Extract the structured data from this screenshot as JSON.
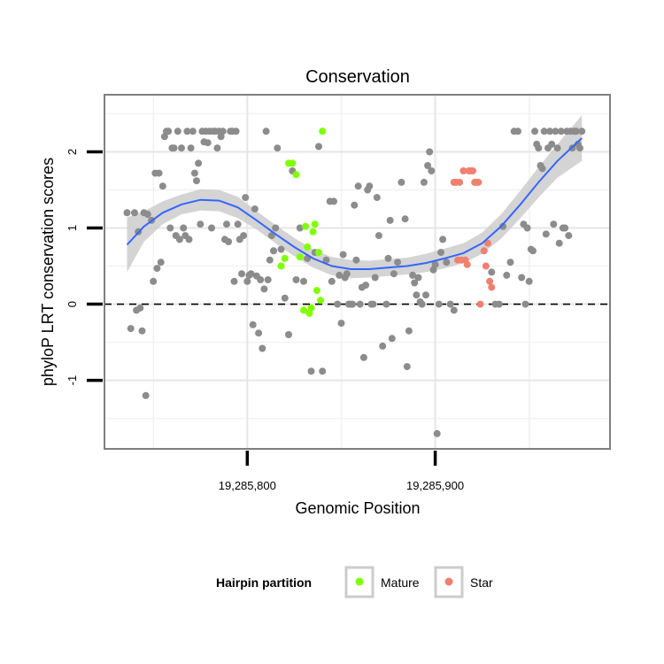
{
  "chart_data": {
    "type": "scatter",
    "title": "Conservation",
    "xlabel": "Genomic Position",
    "ylabel": "phyloP LRT conservation scores",
    "xlim": [
      19285724,
      19285993
    ],
    "ylim": [
      -1.9,
      2.75
    ],
    "x_ticks": [
      {
        "value": 19285800,
        "label": "19,285,800"
      },
      {
        "value": 19285900,
        "label": "19,285,900"
      }
    ],
    "y_ticks": [
      {
        "value": -1,
        "label": "-1"
      },
      {
        "value": 0,
        "label": "0"
      },
      {
        "value": 1,
        "label": "1"
      },
      {
        "value": 2,
        "label": "2"
      }
    ],
    "reference_line": {
      "y": 0,
      "style": "dashed"
    },
    "grid": true,
    "legend": {
      "title": "Hairpin partition",
      "placement": "bottom",
      "entries": [
        {
          "label": "Mature",
          "color": "#7FFF00"
        },
        {
          "label": "Star",
          "color": "#F08070"
        }
      ]
    },
    "colors": {
      "other": "#8c8c8c",
      "mature": "#7FFF00",
      "star": "#F08070",
      "smooth": "#3366FF",
      "band": "#cccccc"
    },
    "series": [
      {
        "group": "other",
        "x": [
          19285736,
          19285738,
          19285740,
          19285741,
          19285742,
          19285743,
          19285744,
          19285745,
          19285746,
          19285747,
          19285749,
          19285750,
          19285751,
          19285752,
          19285753,
          19285754,
          19285755,
          19285756,
          19285757,
          19285758,
          19285759,
          19285760,
          19285761,
          19285762,
          19285763,
          19285764,
          19285765,
          19285766,
          19285767,
          19285768,
          19285769,
          19285770,
          19285771,
          19285772,
          19285773,
          19285774,
          19285775,
          19285776,
          19285777,
          19285778,
          19285779,
          19285780,
          19285781,
          19285782,
          19285783,
          19285784,
          19285785,
          19285786,
          19285787,
          19285788,
          19285789,
          19285790,
          19285791,
          19285792,
          19285793,
          19285794,
          19285795,
          19285796,
          19285797,
          19285798,
          19285799,
          19285800,
          19285801,
          19285802,
          19285803,
          19285804,
          19285805,
          19285806,
          19285807,
          19285808,
          19285809,
          19285810,
          19285811,
          19285812,
          19285813,
          19285814,
          19285815,
          19285816,
          19285818,
          19285820,
          19285822,
          19285824,
          19285826,
          19285828,
          19285830,
          19285832,
          19285834,
          19285836,
          19285838,
          19285840,
          19285842,
          19285844,
          19285845,
          19285846,
          19285848,
          19285849,
          19285850,
          19285851,
          19285852,
          19285853,
          19285854,
          19285855,
          19285856,
          19285857,
          19285858,
          19285859,
          19285860,
          19285861,
          19285862,
          19285863,
          19285864,
          19285865,
          19285866,
          19285867,
          19285868,
          19285869,
          19285870,
          19285872,
          19285874,
          19285875,
          19285876,
          19285877,
          19285878,
          19285880,
          19285882,
          19285884,
          19285885,
          19285886,
          19285888,
          19285889,
          19285890,
          19285891,
          19285892,
          19285893,
          19285894,
          19285895,
          19285896,
          19285897,
          19285898,
          19285899,
          19285900,
          19285901,
          19285902,
          19285903,
          19285904,
          19285906,
          19285908,
          19285910,
          19285930,
          19285932,
          19285934,
          19285936,
          19285938,
          19285940,
          19285942,
          19285944,
          19285946,
          19285947,
          19285948,
          19285949,
          19285950,
          19285951,
          19285952,
          19285953,
          19285954,
          19285955,
          19285956,
          19285957,
          19285958,
          19285959,
          19285960,
          19285961,
          19285962,
          19285963,
          19285964,
          19285965,
          19285966,
          19285967,
          19285968,
          19285969,
          19285970,
          19285971,
          19285972,
          19285973,
          19285974,
          19285975,
          19285976,
          19285977,
          19285978
        ],
        "y": [
          1.2,
          -0.32,
          1.2,
          -0.08,
          0.95,
          -0.05,
          -0.35,
          1.2,
          -1.2,
          1.18,
          1.1,
          0.3,
          1.72,
          0.47,
          1.72,
          0.55,
          1.55,
          2.2,
          2.27,
          2.27,
          1.0,
          2.05,
          2.05,
          0.9,
          2.27,
          0.85,
          2.05,
          1.0,
          0.9,
          2.27,
          0.85,
          2.05,
          2.27,
          1.72,
          1.62,
          1.85,
          1.05,
          2.27,
          2.13,
          2.27,
          2.12,
          2.27,
          1.0,
          2.27,
          2.27,
          2.05,
          2.27,
          2.2,
          2.27,
          0.85,
          1.05,
          0.82,
          2.27,
          2.27,
          0.3,
          2.27,
          1.05,
          0.85,
          0.4,
          0.9,
          1.4,
          0.3,
          0.38,
          0.4,
          -0.27,
          1.25,
          0.37,
          -0.38,
          0.32,
          -0.58,
          0.2,
          2.27,
          0.32,
          0.58,
          0.9,
          0.7,
          1.0,
          2.05,
          0.72,
          0.08,
          -0.4,
          1.75,
          0.32,
          1.0,
          0.3,
          0.6,
          -0.88,
          0.68,
          2.07,
          -0.88,
          0.58,
          1.35,
          0.3,
          1.35,
          0.0,
          0.38,
          -0.25,
          0.65,
          0.35,
          0.4,
          0.0,
          0.0,
          0.0,
          1.3,
          0.58,
          1.55,
          0.0,
          0.22,
          -0.7,
          0.25,
          1.5,
          1.55,
          0.0,
          0.0,
          0.35,
          1.4,
          0.9,
          -0.55,
          0.0,
          0.6,
          1.1,
          -0.45,
          0.4,
          0.55,
          1.6,
          1.12,
          -0.82,
          -0.35,
          0.38,
          0.28,
          0.12,
          0.35,
          0.03,
          0.0,
          1.6,
          0.12,
          1.82,
          2.0,
          1.75,
          0.45,
          0.52,
          -1.7,
          0.0,
          0.68,
          0.85,
          0.55,
          0.0,
          -0.08,
          0.42,
          0.0,
          0.0,
          1.02,
          0.38,
          0.55,
          2.27,
          2.27,
          0.35,
          1.05,
          0.0,
          1.0,
          0.3,
          0.72,
          0.7,
          2.27,
          2.1,
          2.05,
          1.82,
          1.78,
          2.27,
          0.92,
          2.05,
          2.27,
          2.1,
          1.05,
          2.27,
          2.05,
          0.8,
          2.27,
          1.0,
          1.0,
          2.27,
          0.9,
          2.27,
          2.05,
          2.27,
          2.27,
          2.1,
          2.05,
          2.27
        ]
      },
      {
        "group": "Mature",
        "x": [
          19285818,
          19285820,
          19285822,
          19285824,
          19285826,
          19285828,
          19285830,
          19285831,
          19285832,
          19285833,
          19285834,
          19285835,
          19285836,
          19285837,
          19285838,
          19285839,
          19285840
        ],
        "y": [
          0.5,
          0.6,
          1.85,
          1.85,
          1.7,
          0.62,
          -0.08,
          1.02,
          0.75,
          -0.12,
          -0.05,
          0.95,
          1.05,
          0.18,
          0.68,
          0.05,
          2.27
        ]
      },
      {
        "group": "Star",
        "x": [
          19285910,
          19285911,
          19285912,
          19285913,
          19285914,
          19285915,
          19285916,
          19285917,
          19285918,
          19285919,
          19285920,
          19285921,
          19285922,
          19285923,
          19285924,
          19285926,
          19285927,
          19285928,
          19285929,
          19285930
        ],
        "y": [
          1.6,
          1.6,
          0.58,
          1.6,
          0.58,
          1.75,
          0.58,
          0.52,
          1.75,
          1.75,
          1.75,
          1.6,
          1.6,
          1.6,
          0.0,
          0.7,
          0.5,
          0.8,
          0.3,
          0.22
        ]
      }
    ],
    "smooth": {
      "x": [
        19285736,
        19285745,
        19285755,
        19285765,
        19285775,
        19285785,
        19285795,
        19285805,
        19285815,
        19285825,
        19285835,
        19285845,
        19285855,
        19285865,
        19285875,
        19285885,
        19285895,
        19285905,
        19285915,
        19285925,
        19285935,
        19285945,
        19285955,
        19285965,
        19285978
      ],
      "y": [
        0.78,
        1.02,
        1.2,
        1.31,
        1.37,
        1.36,
        1.27,
        1.1,
        0.92,
        0.75,
        0.6,
        0.5,
        0.46,
        0.46,
        0.48,
        0.5,
        0.54,
        0.6,
        0.67,
        0.8,
        1.02,
        1.3,
        1.6,
        1.88,
        2.18
      ],
      "lower": [
        0.42,
        0.82,
        1.05,
        1.18,
        1.23,
        1.22,
        1.13,
        0.98,
        0.8,
        0.63,
        0.48,
        0.38,
        0.34,
        0.35,
        0.37,
        0.39,
        0.42,
        0.47,
        0.54,
        0.66,
        0.86,
        1.12,
        1.4,
        1.66,
        1.88
      ],
      "upper": [
        1.14,
        1.22,
        1.35,
        1.44,
        1.51,
        1.5,
        1.41,
        1.22,
        1.04,
        0.87,
        0.72,
        0.62,
        0.58,
        0.57,
        0.59,
        0.61,
        0.66,
        0.73,
        0.8,
        0.94,
        1.18,
        1.48,
        1.8,
        2.1,
        2.48
      ]
    }
  }
}
